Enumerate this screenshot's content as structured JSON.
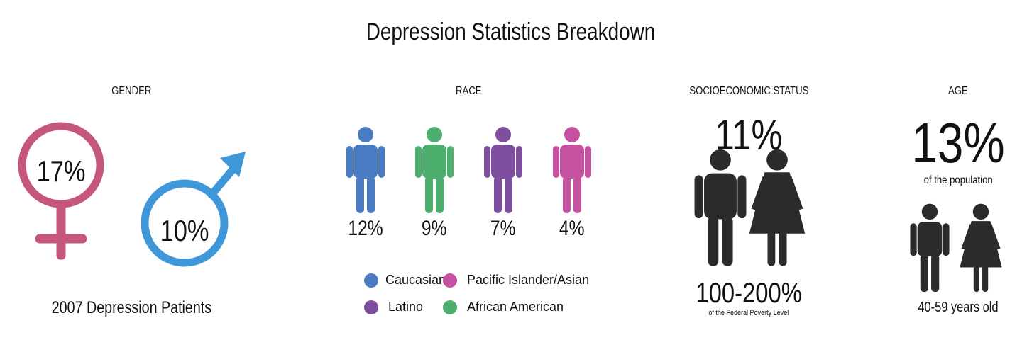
{
  "title": "Depression Statistics Breakdown",
  "colors": {
    "female": "#c4577a",
    "male": "#3e97d8",
    "dark": "#2b2b2b",
    "caucasian": "#4a7cc4",
    "african_american": "#4caf6e",
    "latino": "#7e4f9e",
    "pacific_islander_asian": "#c452a1"
  },
  "gender": {
    "heading": "GENDER",
    "female_value": "17%",
    "male_value": "10%",
    "caption": "2007 Depression Patients"
  },
  "race": {
    "heading": "RACE",
    "legend": {
      "caucasian": "Caucasian",
      "pacific_islander_asian": "Pacific Islander/Asian",
      "latino": "Latino",
      "african_american": "African American"
    }
  },
  "ses": {
    "heading": "SOCIOECONOMIC STATUS",
    "value": "11%",
    "range": "100-200%",
    "caption": "of the Federal Poverty Level"
  },
  "age": {
    "heading": "AGE",
    "value": "13%",
    "sub": "of the population",
    "caption": "40-59 years old"
  },
  "chart_data": {
    "type": "bar",
    "title": "RACE",
    "categories": [
      "Caucasian",
      "African American",
      "Latino",
      "Pacific Islander/Asian"
    ],
    "values": [
      12,
      9,
      7,
      4
    ],
    "value_labels": [
      "12%",
      "9%",
      "7%",
      "4%"
    ],
    "unit": "%"
  }
}
